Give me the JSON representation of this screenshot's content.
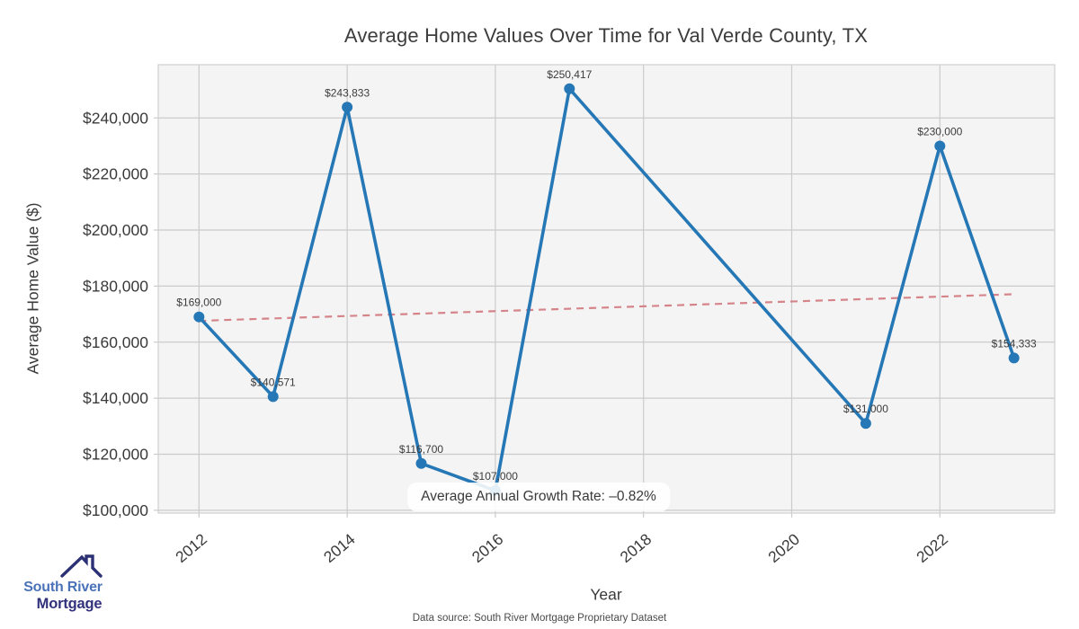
{
  "chart_data": {
    "type": "line",
    "title": "Average Home Values Over Time for Val Verde County, TX",
    "xlabel": "Year",
    "ylabel": "Average Home Value ($)",
    "x": [
      2012,
      2013,
      2014,
      2015,
      2016,
      2017,
      2021,
      2022,
      2023
    ],
    "values": [
      169000,
      140571,
      243833,
      116700,
      107000,
      250417,
      131000,
      230000,
      154333
    ],
    "point_labels": [
      "$169,000",
      "$140,571",
      "$243,833",
      "$116,700",
      "$107,000",
      "$250,417",
      "$131,000",
      "$230,000",
      "$154,333"
    ],
    "x_ticks": [
      2012,
      2014,
      2016,
      2018,
      2020,
      2022
    ],
    "x_tick_labels": [
      "2012",
      "2014",
      "2016",
      "2018",
      "2020",
      "2022"
    ],
    "y_ticks": [
      100000,
      120000,
      140000,
      160000,
      180000,
      200000,
      220000,
      240000
    ],
    "y_tick_labels": [
      "$100,000",
      "$120,000",
      "$140,000",
      "$160,000",
      "$180,000",
      "$200,000",
      "$220,000",
      "$240,000"
    ],
    "xlim": [
      2011.45,
      2023.55
    ],
    "ylim": [
      99000,
      259000
    ],
    "grid": true,
    "legend": "none",
    "trend_line": {
      "x": [
        2012,
        2023
      ],
      "values": [
        167600,
        177100
      ],
      "style": "dashed"
    },
    "annotation": "Average Annual Growth Rate: –0.82%",
    "colors": {
      "series": "#2578b5",
      "trend": "#d2797f",
      "plot_background": "#f5f4f5",
      "grid": "#cbcbcb",
      "tick_text": "#3a3a3a",
      "point_label_text": "#3c3c3c"
    }
  },
  "annotation": {
    "text": "Average Annual Growth Rate: –0.82%"
  },
  "footer": {
    "source": "Data source: South River Mortgage Proprietary Dataset"
  },
  "logo": {
    "line1": "South River",
    "line2": "Mortgage",
    "colors": {
      "line1": "#4a72b8",
      "line2": "#31317c",
      "icon": "#2c3075"
    }
  }
}
